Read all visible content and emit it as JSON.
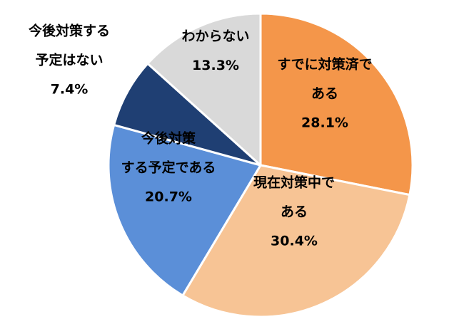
{
  "chart_data": {
    "type": "pie",
    "title": "",
    "start_angle_deg": 0,
    "direction": "clockwise",
    "slices": [
      {
        "label_lines": [
          "すでに対策済で",
          "ある"
        ],
        "value_text": "28.1%",
        "value": 28.1,
        "color": "#F4964A",
        "text_color": "#000000"
      },
      {
        "label_lines": [
          "現在対策中で",
          "ある"
        ],
        "value_text": "30.4%",
        "value": 30.4,
        "color": "#F7C495",
        "text_color": "#000000"
      },
      {
        "label_lines": [
          "今後対策",
          "する予定である"
        ],
        "value_text": "20.7%",
        "value": 20.7,
        "color": "#5B8FD8",
        "text_color": "#000000"
      },
      {
        "label_lines": [
          "今後対策する",
          "予定はない"
        ],
        "value_text": "7.4%",
        "value": 7.4,
        "color": "#1F3F73",
        "text_color": "#000000"
      },
      {
        "label_lines": [
          "わからない"
        ],
        "value_text": "13.3%",
        "value": 13.3,
        "color": "#D9D9D9",
        "text_color": "#000000"
      }
    ]
  }
}
